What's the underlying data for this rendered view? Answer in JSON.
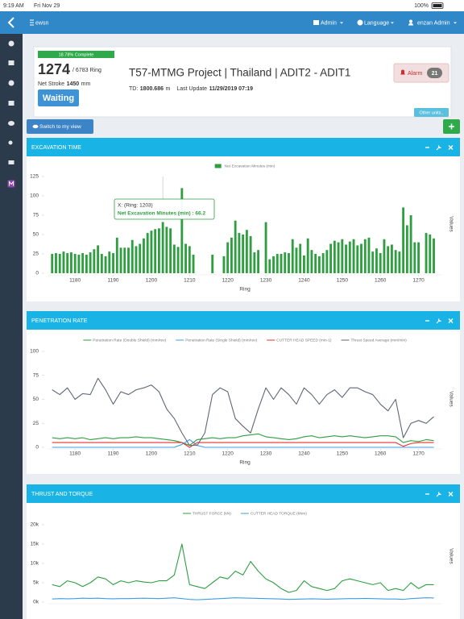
{
  "status_bar": {
    "time": "9:19 AM",
    "date": "Fri Nov 29",
    "battery": "100%"
  },
  "navbar": {
    "brand": "ewsn",
    "menu": [
      "Admin",
      "Language",
      "enzan Admin"
    ]
  },
  "summary": {
    "progress": "18.78% Complete",
    "ring": "1274",
    "ring_total": "/ 6783 Ring",
    "net_stroke_label": "Net Stroke",
    "net_stroke": "1450",
    "net_stroke_unit": "mm",
    "status": "Waiting",
    "title": "T57-MTMG Project | Thailand | ADIT2 - ADIT1",
    "td_label": "TD:",
    "td": "1800.686",
    "td_unit": "m",
    "update_label": "Last Update",
    "update": "11/29/2019 07:19",
    "alarm": "Alarm",
    "alarm_count": "21",
    "other_units": "Other units.."
  },
  "toolbar": {
    "switch": "Switch to my view"
  },
  "chart_data": [
    {
      "type": "bar",
      "title": "EXCAVATION TIME",
      "x_label": "Ring",
      "y_label": "Values",
      "x": [
        1174,
        1175,
        1176,
        1177,
        1178,
        1179,
        1180,
        1181,
        1182,
        1183,
        1184,
        1185,
        1186,
        1187,
        1188,
        1189,
        1190,
        1191,
        1192,
        1193,
        1194,
        1195,
        1196,
        1197,
        1198,
        1199,
        1200,
        1201,
        1202,
        1203,
        1204,
        1205,
        1206,
        1207,
        1208,
        1209,
        1210,
        1211,
        1212,
        1213,
        1214,
        1215,
        1216,
        1217,
        1218,
        1219,
        1220,
        1221,
        1222,
        1223,
        1224,
        1225,
        1226,
        1227,
        1228,
        1229,
        1230,
        1231,
        1232,
        1233,
        1234,
        1235,
        1236,
        1237,
        1238,
        1239,
        1240,
        1241,
        1242,
        1243,
        1244,
        1245,
        1246,
        1247,
        1248,
        1249,
        1250,
        1251,
        1252,
        1253,
        1254,
        1255,
        1256,
        1257,
        1258,
        1259,
        1260,
        1261,
        1262,
        1263,
        1264,
        1265,
        1266,
        1267,
        1268,
        1269,
        1270,
        1271,
        1272,
        1273,
        1274
      ],
      "series": [
        {
          "name": "Net Excavation Minutes (min)",
          "color": "#2e9e41",
          "values": [
            25,
            26,
            25,
            28,
            26,
            27,
            25,
            24,
            26,
            24,
            27,
            31,
            36,
            25,
            22,
            28,
            26,
            46,
            33,
            33,
            33,
            43,
            35,
            38,
            45,
            52,
            55,
            57,
            58,
            66.2,
            60,
            58,
            37,
            34,
            110,
            38,
            35,
            24,
            null,
            null,
            null,
            null,
            24,
            null,
            null,
            22,
            40,
            46,
            68,
            52,
            50,
            56,
            48,
            27,
            30,
            null,
            66,
            18,
            22,
            25,
            25,
            27,
            26,
            44,
            33,
            38,
            23,
            45,
            30,
            25,
            22,
            26,
            30,
            38,
            42,
            40,
            44,
            37,
            41,
            44,
            36,
            38,
            44,
            46,
            28,
            32,
            26,
            44,
            35,
            37,
            30,
            28,
            85,
            62,
            75,
            40,
            40,
            null,
            52,
            50,
            45
          ]
        }
      ],
      "xlim": [
        1173,
        1276
      ],
      "ylim": [
        0,
        125
      ],
      "xticks": [
        1180,
        1190,
        1200,
        1210,
        1220,
        1230,
        1240,
        1250,
        1260,
        1270
      ],
      "yticks": [
        0,
        25,
        50,
        75,
        100,
        125
      ],
      "tooltip": {
        "x": 1203,
        "title": "X: (Ring: 1203)",
        "text": "Net Excavation Minutes (min) : 66.2"
      }
    },
    {
      "type": "line",
      "title": "PENETRATION RATE",
      "x_label": "Ring",
      "y_label": "Values",
      "x": [
        1174,
        1176,
        1178,
        1180,
        1182,
        1184,
        1186,
        1188,
        1190,
        1192,
        1194,
        1196,
        1198,
        1200,
        1202,
        1204,
        1206,
        1208,
        1210,
        1212,
        1214,
        1216,
        1218,
        1220,
        1222,
        1224,
        1226,
        1228,
        1230,
        1232,
        1234,
        1236,
        1238,
        1240,
        1242,
        1244,
        1246,
        1248,
        1250,
        1252,
        1254,
        1256,
        1258,
        1260,
        1262,
        1264,
        1266,
        1268,
        1270,
        1272,
        1274
      ],
      "series": [
        {
          "name": "Penetration Rate (Double Shield) (mm/rev)",
          "color": "#2e9e41",
          "values": [
            10,
            9,
            10,
            9,
            10,
            8,
            9,
            10,
            9,
            10,
            10,
            11,
            10,
            10,
            9,
            8,
            7,
            5,
            2,
            8,
            9,
            10,
            9,
            10,
            10,
            12,
            13,
            14,
            11,
            10,
            9,
            8,
            9,
            11,
            12,
            10,
            11,
            12,
            11,
            12,
            11,
            10,
            11,
            12,
            12,
            11,
            5,
            7,
            6,
            8,
            7
          ]
        },
        {
          "name": "Penetration Rate (Single Shield) (mm/rev)",
          "color": "#3c9ee5",
          "values": [
            0,
            0,
            0,
            0,
            0,
            0,
            0,
            0,
            0,
            0,
            0,
            0,
            0,
            0,
            0,
            0,
            0,
            3,
            8,
            2,
            0,
            0,
            0,
            0,
            0,
            0,
            0,
            0,
            0,
            0,
            0,
            0,
            0,
            0,
            0,
            0,
            0,
            0,
            0,
            0,
            0,
            0,
            0,
            0,
            0,
            0,
            0,
            0,
            0,
            0,
            0
          ]
        },
        {
          "name": "CUTTER HEAD SPEED (min-1)",
          "color": "#e8322e",
          "values": [
            5,
            5,
            5,
            5,
            5,
            5,
            5,
            5,
            5,
            5,
            5,
            5,
            5,
            5,
            5,
            5,
            5,
            5,
            0,
            5,
            5,
            5,
            5,
            5,
            5,
            5,
            5,
            5,
            5,
            5,
            5,
            5,
            5,
            5,
            5,
            5,
            5,
            5,
            5,
            5,
            5,
            5,
            5,
            5,
            5,
            5,
            1,
            4,
            5,
            5,
            5
          ]
        },
        {
          "name": "Thrust Speed Average (mm/min)",
          "color": "#5f6773",
          "values": [
            60,
            55,
            62,
            50,
            56,
            55,
            72,
            60,
            45,
            58,
            55,
            60,
            62,
            65,
            58,
            40,
            30,
            15,
            2,
            2,
            15,
            55,
            62,
            58,
            30,
            22,
            15,
            40,
            62,
            50,
            62,
            55,
            45,
            62,
            55,
            45,
            55,
            60,
            52,
            62,
            62,
            58,
            55,
            45,
            38,
            50,
            10,
            25,
            28,
            25,
            32
          ]
        }
      ],
      "xlim": [
        1173,
        1276
      ],
      "ylim": [
        0,
        100
      ],
      "xticks": [
        1180,
        1190,
        1200,
        1210,
        1220,
        1230,
        1240,
        1250,
        1260,
        1270
      ],
      "yticks": [
        0,
        25,
        50,
        75,
        100
      ]
    },
    {
      "type": "line",
      "title": "THRUST AND TORQUE",
      "y_label": "Values",
      "x": [
        1174,
        1176,
        1178,
        1180,
        1182,
        1184,
        1186,
        1188,
        1190,
        1192,
        1194,
        1196,
        1198,
        1200,
        1202,
        1204,
        1206,
        1208,
        1210,
        1212,
        1214,
        1216,
        1218,
        1220,
        1222,
        1224,
        1226,
        1228,
        1230,
        1232,
        1234,
        1236,
        1238,
        1240,
        1242,
        1244,
        1246,
        1248,
        1250,
        1252,
        1254,
        1256,
        1258,
        1260,
        1262,
        1264,
        1266,
        1268,
        1270,
        1272,
        1274
      ],
      "series": [
        {
          "name": "THRUST FORCE (kN)",
          "color": "#2e9e41",
          "values": [
            4500,
            4000,
            5500,
            5000,
            4000,
            5000,
            6500,
            6000,
            4500,
            5500,
            5000,
            5500,
            5200,
            5000,
            5500,
            5500,
            7000,
            15000,
            4500,
            4000,
            3500,
            5000,
            6500,
            6000,
            8000,
            7000,
            10500,
            8000,
            6000,
            5000,
            3500,
            2500,
            3000,
            5500,
            4000,
            3500,
            3000,
            3500,
            5500,
            6000,
            5500,
            5000,
            4500,
            5000,
            3000,
            3500,
            3000,
            5000,
            3500,
            4500,
            4500
          ]
        },
        {
          "name": "CUTTER HEAD TORQUE (kNm)",
          "color": "#3c9ee5",
          "values": [
            800,
            900,
            850,
            900,
            1000,
            950,
            1000,
            900,
            850,
            900,
            900,
            950,
            1000,
            950,
            900,
            1000,
            1100,
            900,
            700,
            600,
            700,
            800,
            900,
            1000,
            1100,
            1050,
            1000,
            950,
            900,
            850,
            800,
            700,
            750,
            800,
            850,
            800,
            750,
            800,
            850,
            900,
            900,
            950,
            900,
            850,
            800,
            800,
            700,
            900,
            1000,
            1100,
            1050
          ]
        }
      ],
      "xlim": [
        1173,
        1276
      ],
      "ylim": [
        0,
        20000
      ],
      "yticks": [
        {
          "value": 0,
          "label": "0k"
        },
        {
          "value": 5000,
          "label": "5k"
        },
        {
          "value": 10000,
          "label": "10k"
        },
        {
          "value": 15000,
          "label": "15k"
        },
        {
          "value": 20000,
          "label": "20k"
        }
      ]
    }
  ]
}
